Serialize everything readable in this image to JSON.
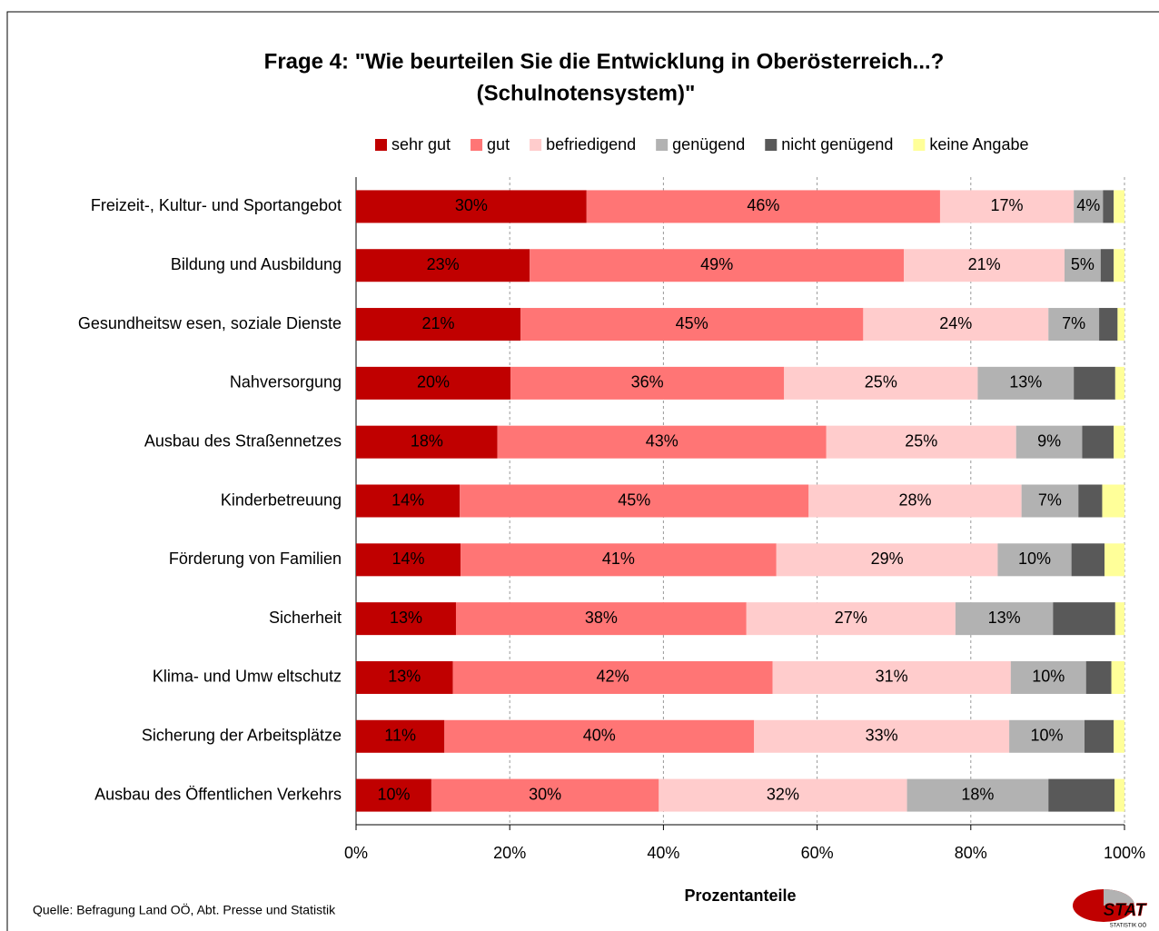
{
  "chart_data": {
    "type": "stacked_barh",
    "title": [
      "Frage 4: \"Wie beurteilen Sie die Entwicklung in Oberösterreich...?",
      "(Schulnotensystem)\""
    ],
    "categories": [
      "Freizeit-, Kultur- und Sportangebot",
      "Bildung und Ausbildung",
      "Gesundheitsw esen, soziale Dienste",
      "Nahversorgung",
      "Ausbau des Straßennetzes",
      "Kinderbetreuung",
      "Förderung von Familien",
      "Sicherheit",
      "Klima- und Umw eltschutz",
      "Sicherung der Arbeitsplätze",
      "Ausbau des Öffentlichen Verkehrs"
    ],
    "series": [
      {
        "name": "sehr gut",
        "color": "#c00000",
        "values": [
          30,
          22.6,
          21.4,
          20.1,
          18.4,
          13.5,
          13.6,
          13.0,
          12.6,
          11.5,
          9.8
        ],
        "value_labels": [
          "30%",
          "23%",
          "21%",
          "20%",
          "18%",
          "14%",
          "14%",
          "13%",
          "13%",
          "11%",
          "10%"
        ]
      },
      {
        "name": "gut",
        "color": "#ff7575",
        "values": [
          46,
          48.7,
          44.6,
          35.6,
          42.8,
          45.4,
          41.1,
          37.8,
          41.6,
          40.3,
          29.6
        ],
        "value_labels": [
          "46%",
          "49%",
          "45%",
          "36%",
          "43%",
          "45%",
          "41%",
          "38%",
          "42%",
          "40%",
          "30%"
        ]
      },
      {
        "name": "befriedigend",
        "color": "#ffcccc",
        "values": [
          17.4,
          20.9,
          24.1,
          25.2,
          24.7,
          27.7,
          28.8,
          27.2,
          31.0,
          33.2,
          32.3
        ],
        "value_labels": [
          "17%",
          "21%",
          "24%",
          "25%",
          "25%",
          "28%",
          "29%",
          "27%",
          "31%",
          "33%",
          "32%"
        ]
      },
      {
        "name": "genügend",
        "color": "#b2b2b2",
        "values": [
          3.8,
          4.7,
          6.6,
          12.5,
          8.6,
          7.4,
          9.6,
          12.7,
          9.8,
          9.8,
          18.4
        ],
        "value_labels": [
          "4%",
          "5%",
          "7%",
          "13%",
          "9%",
          "7%",
          "10%",
          "13%",
          "10%",
          "10%",
          "18%"
        ]
      },
      {
        "name": "nicht genügend",
        "color": "#595959",
        "values": [
          1.4,
          1.7,
          2.4,
          5.4,
          4.1,
          3.1,
          4.3,
          8.1,
          3.3,
          3.8,
          8.6
        ]
      },
      {
        "name": "keine Angabe",
        "color": "#ffff99",
        "values": [
          1.4,
          1.4,
          0.9,
          1.2,
          1.4,
          2.9,
          2.6,
          1.2,
          1.7,
          1.4,
          1.3
        ]
      }
    ],
    "xlim": [
      0,
      100
    ],
    "xticks": [
      {
        "value": 0,
        "label": "0%"
      },
      {
        "value": 20,
        "label": "20%"
      },
      {
        "value": 40,
        "label": "40%"
      },
      {
        "value": 60,
        "label": "60%"
      },
      {
        "value": 80,
        "label": "80%"
      },
      {
        "value": 100,
        "label": "100%"
      }
    ],
    "xlabel": "Prozentanteile",
    "grid": true,
    "legend": "top",
    "source": "Quelle: Befragung Land OÖ, Abt. Presse und Statistik",
    "logo": [
      "STAT",
      "STATISTIK OÖ"
    ]
  }
}
